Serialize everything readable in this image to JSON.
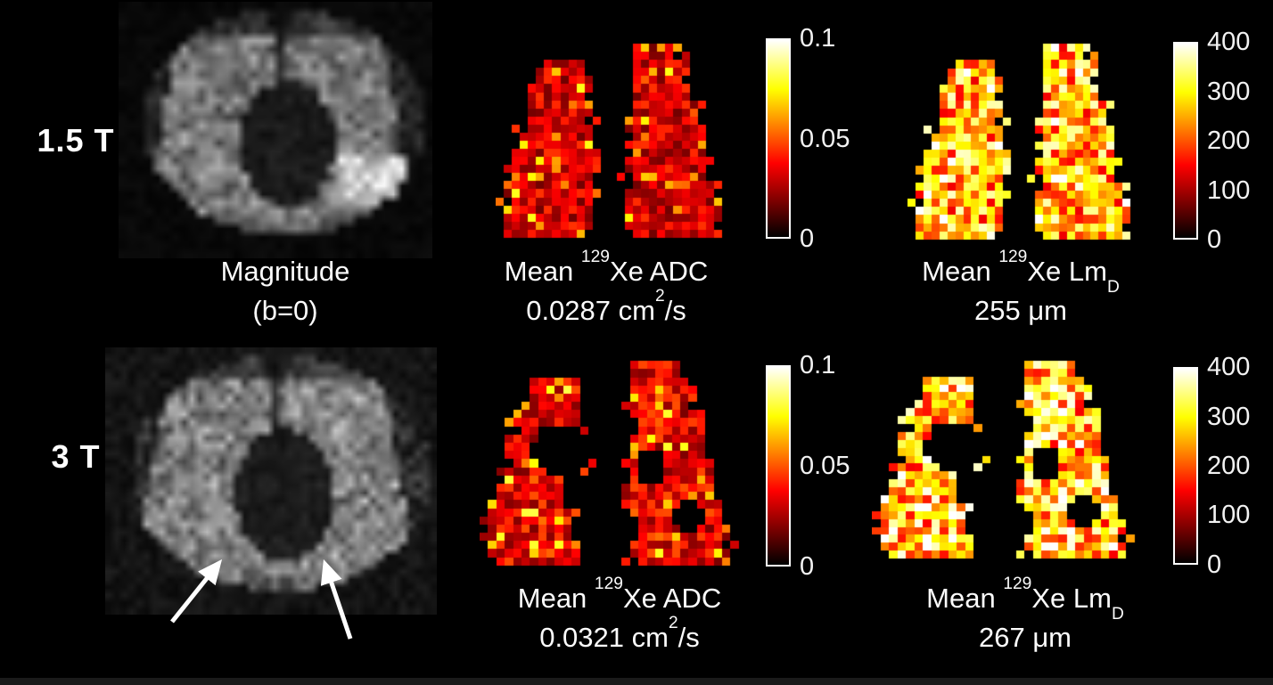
{
  "figure": {
    "background": "#000000",
    "text_color": "#ffffff",
    "rows": [
      {
        "field_label": "1.5 T",
        "magnitude_caption": {
          "line1": "Magnitude",
          "line2": "(b=0)"
        },
        "adc_title": {
          "pre": "Mean ",
          "sup": "129",
          "mid": "Xe ADC"
        },
        "adc_mean": {
          "pre": "0.0287 cm",
          "sup": "2",
          "mid": "/s"
        },
        "lmd_title": {
          "pre": "Mean ",
          "sup": "129",
          "mid": "Xe Lm",
          "sub": "D"
        },
        "lmd_mean": {
          "pre": "255 μm"
        }
      },
      {
        "field_label": "3 T",
        "adc_title": {
          "pre": "Mean ",
          "sup": "129",
          "mid": "Xe ADC"
        },
        "adc_mean": {
          "pre": "0.0321 cm",
          "sup": "2",
          "mid": "/s"
        },
        "lmd_title": {
          "pre": "Mean ",
          "sup": "129",
          "mid": "Xe Lm",
          "sub": "D"
        },
        "lmd_mean": {
          "pre": "267 μm"
        }
      }
    ],
    "colorbars": {
      "adc": {
        "min": 0,
        "max": 0.1,
        "ticks": [
          "0.1",
          "0.05",
          "0"
        ],
        "colormap": "hot",
        "units": "cm2/s"
      },
      "lmd": {
        "min": 0,
        "max": 400,
        "ticks": [
          "400",
          "300",
          "200",
          "100",
          "0"
        ],
        "colormap": "hot",
        "units": "um"
      }
    },
    "values": {
      "adc_mean_1p5T_cm2_per_s": 0.0287,
      "adc_mean_3T_cm2_per_s": 0.0321,
      "lmd_mean_1p5T_um": 255,
      "lmd_mean_3T_um": 267
    }
  },
  "render": {
    "colormap_stops": [
      [
        0,
        "#000000"
      ],
      [
        0.375,
        "#ff0000"
      ],
      [
        0.75,
        "#ffff00"
      ],
      [
        1,
        "#ffffff"
      ]
    ],
    "maps": [
      {
        "el": "mag-1p5t",
        "type": "magnitude",
        "seed": 101,
        "grid": [
          36,
          30
        ],
        "noise": 0.55,
        "floor": 0.04,
        "bright": true
      },
      {
        "el": "adc-1p5t",
        "type": "hot",
        "seed": 77,
        "grid": [
          30,
          26
        ],
        "mean": 0.3,
        "holes": false
      },
      {
        "el": "lmd-1p5t",
        "type": "hot",
        "seed": 77,
        "grid": [
          30,
          26
        ],
        "mean": 0.63,
        "holes": false
      },
      {
        "el": "mag-3t",
        "type": "magnitude",
        "seed": 202,
        "grid": [
          44,
          34
        ],
        "noise": 0.85,
        "floor": 0.09,
        "bright": false
      },
      {
        "el": "adc-3t",
        "type": "hot",
        "seed": 88,
        "grid": [
          32,
          27
        ],
        "mean": 0.33,
        "holes": true
      },
      {
        "el": "lmd-3t",
        "type": "hot",
        "seed": 88,
        "grid": [
          32,
          27
        ],
        "mean": 0.66,
        "holes": true
      }
    ]
  }
}
